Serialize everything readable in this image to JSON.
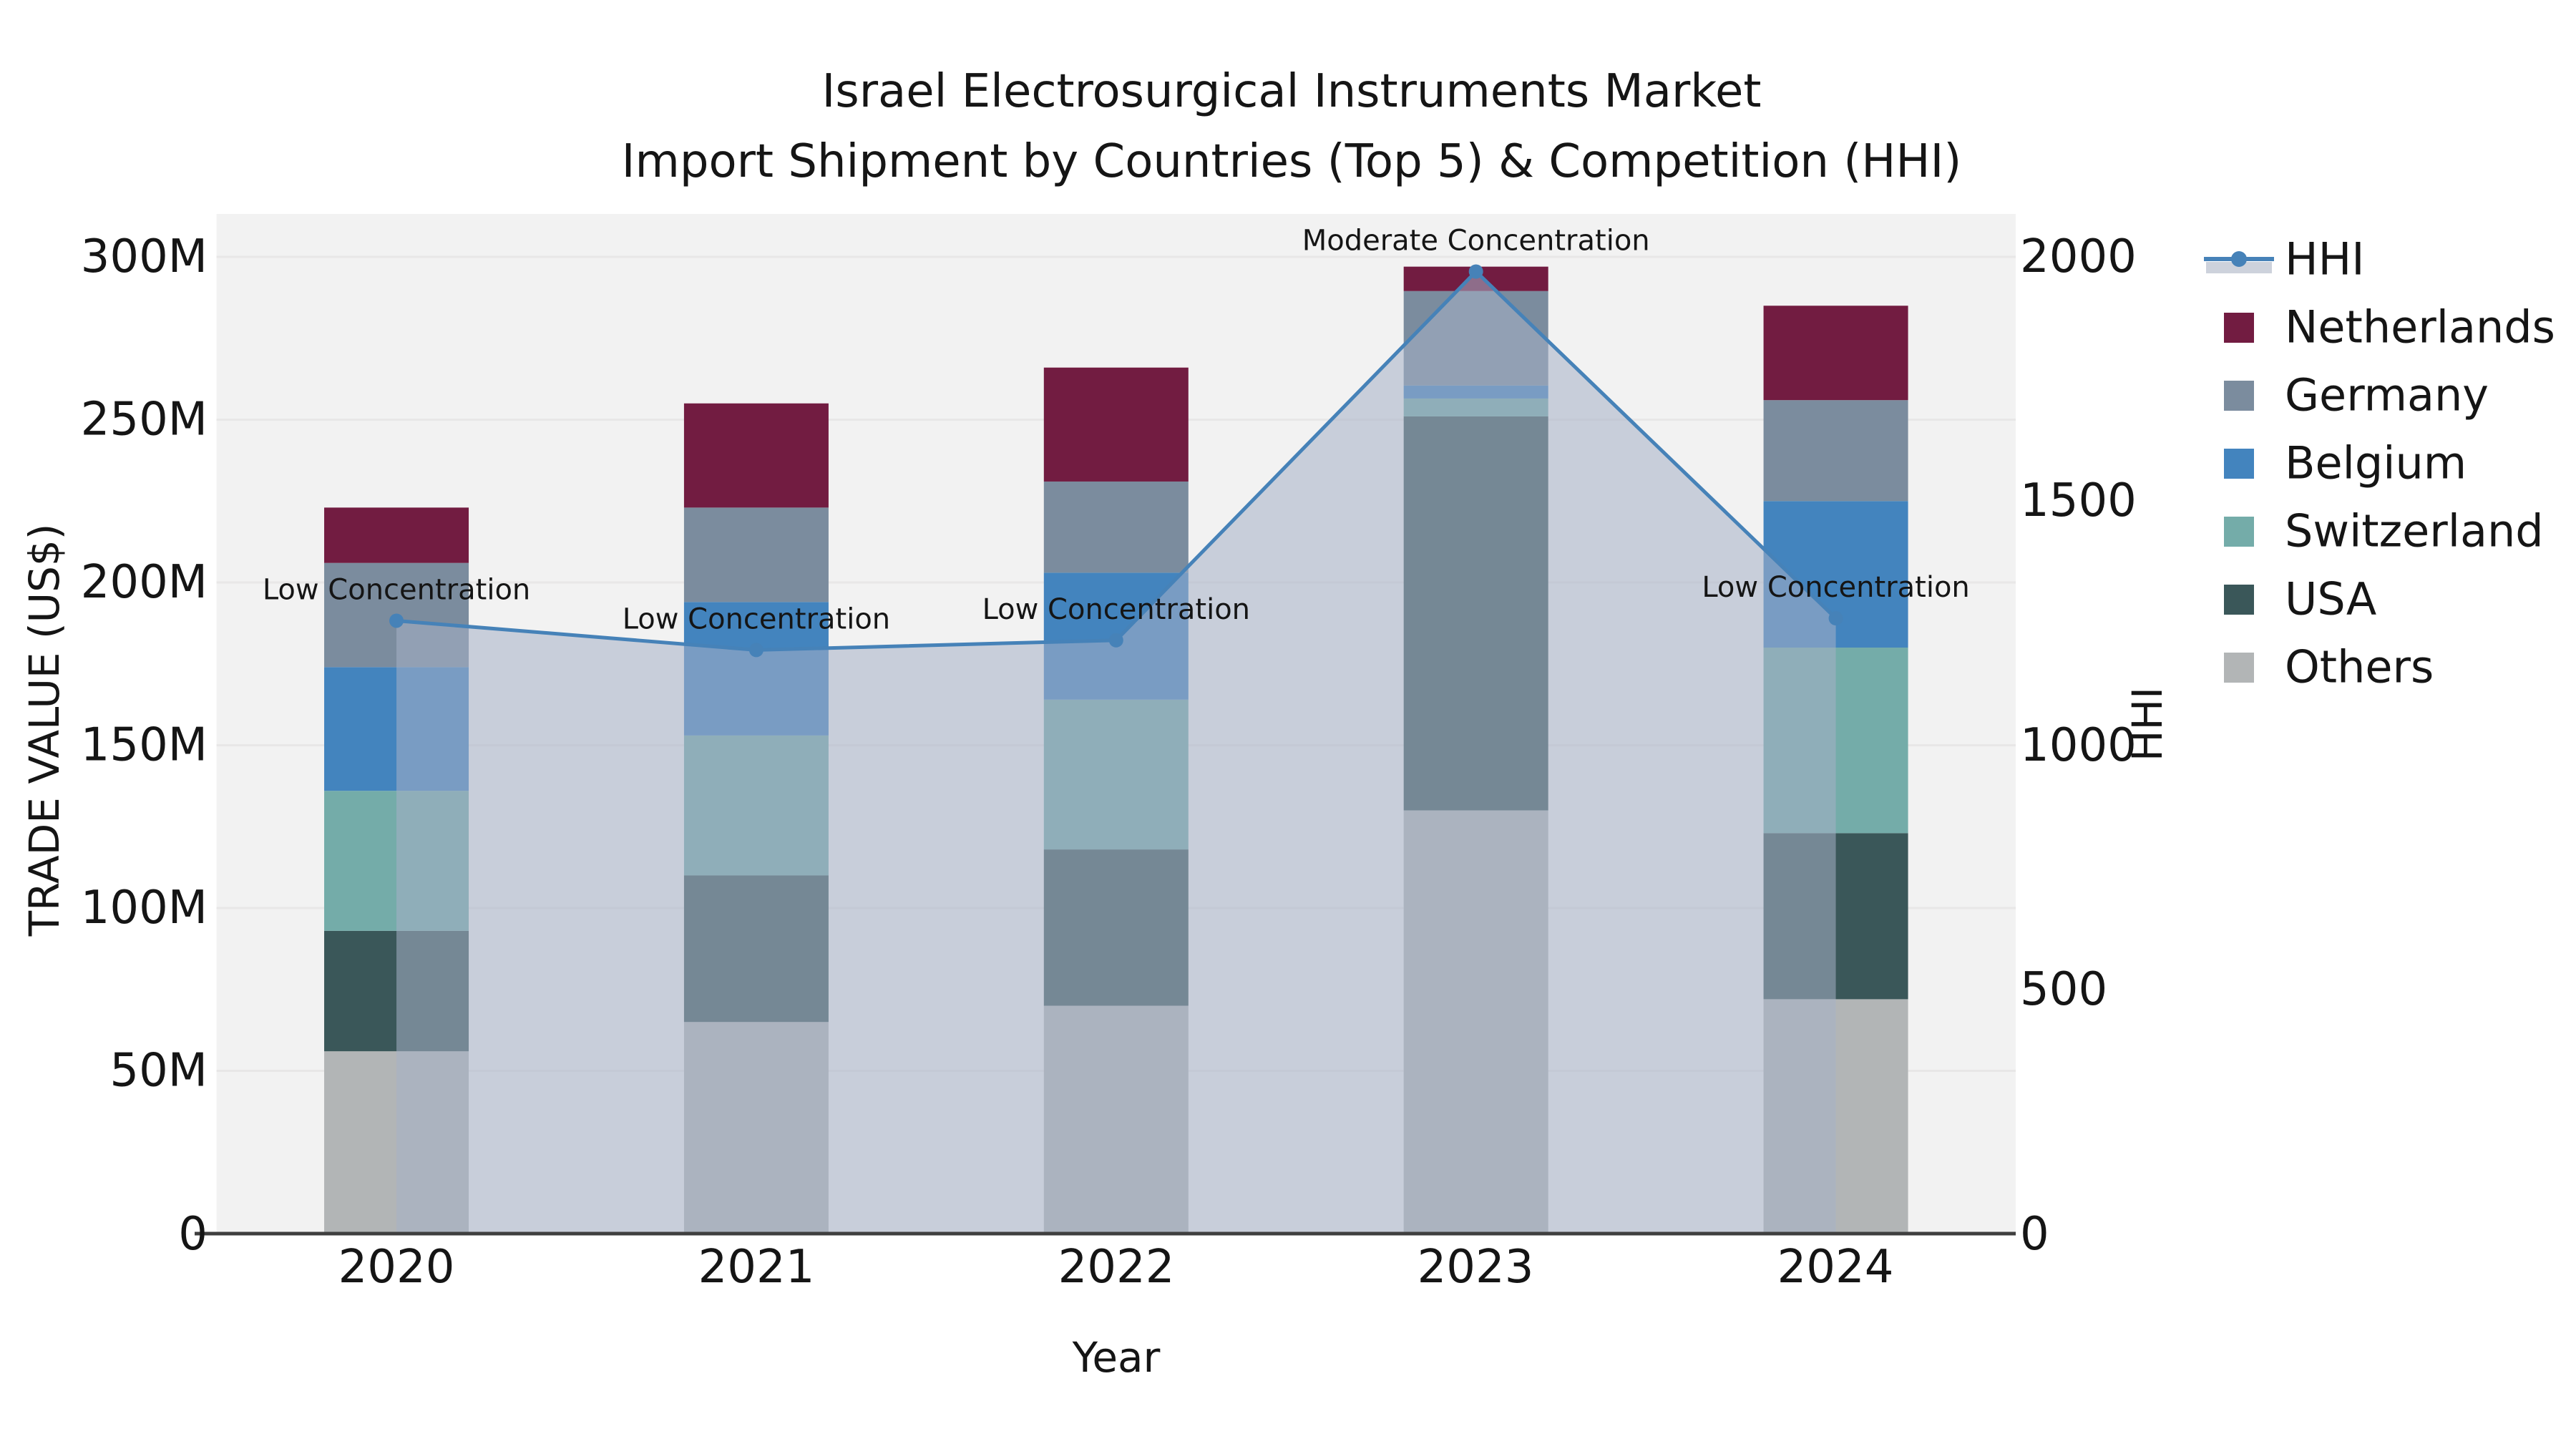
{
  "title": {
    "line1": "Israel Electrosurgical Instruments Market",
    "line2": "Import Shipment by Countries (Top 5) & Competition (HHI)"
  },
  "axes": {
    "y_left": {
      "label": "TRADE VALUE (US$)",
      "tick_labels": [
        "0",
        "50M",
        "100M",
        "150M",
        "200M",
        "250M",
        "300M"
      ],
      "range": [
        0,
        300
      ]
    },
    "y_right": {
      "label": "HHI",
      "tick_labels": [
        "0",
        "500",
        "1000",
        "1500",
        "2000"
      ],
      "range": [
        0,
        2000
      ]
    },
    "x": {
      "label": "Year"
    }
  },
  "legend": {
    "items": [
      {
        "label": "HHI",
        "color": "#4682B8",
        "band_color": "#CDD2DC",
        "type": "line"
      },
      {
        "label": "Netherlands",
        "color": "#721C41",
        "type": "swatch"
      },
      {
        "label": "Germany",
        "color": "#7B8C9E",
        "type": "swatch"
      },
      {
        "label": "Belgium",
        "color": "#4384BE",
        "type": "swatch"
      },
      {
        "label": "Switzerland",
        "color": "#74ACA9",
        "type": "swatch"
      },
      {
        "label": "USA",
        "color": "#3A5759",
        "type": "swatch"
      },
      {
        "label": "Others",
        "color": "#B2B5B6",
        "type": "swatch"
      }
    ]
  },
  "chart_data": {
    "type": "combo-stacked-bar-line",
    "title": "Israel Electrosurgical Instruments Market — Import Shipment by Countries (Top 5) & Competition (HHI)",
    "xlabel": "Year",
    "ylabel_left": "TRADE VALUE (US$)",
    "ylabel_right": "HHI",
    "categories": [
      "2020",
      "2021",
      "2022",
      "2023",
      "2024"
    ],
    "bar_unit": "US$ millions",
    "stack_order_bottom_to_top": [
      "Others",
      "USA",
      "Switzerland",
      "Belgium",
      "Germany",
      "Netherlands"
    ],
    "series": [
      {
        "name": "Others",
        "color": "#B2B5B6",
        "values": [
          56,
          65,
          70,
          130,
          72
        ]
      },
      {
        "name": "USA",
        "color": "#3A5759",
        "values": [
          37,
          45,
          48,
          121,
          51
        ]
      },
      {
        "name": "Switzerland",
        "color": "#74ACA9",
        "values": [
          43,
          43,
          46,
          5.5,
          57
        ]
      },
      {
        "name": "Belgium",
        "color": "#4384BE",
        "values": [
          38,
          41,
          39,
          4,
          45
        ]
      },
      {
        "name": "Germany",
        "color": "#7B8C9E",
        "values": [
          32,
          29,
          28,
          29,
          31
        ]
      },
      {
        "name": "Netherlands",
        "color": "#721C41",
        "values": [
          17,
          32,
          35,
          7.5,
          29
        ]
      }
    ],
    "totals_trade_value_M": [
      223,
      255,
      266,
      297,
      285
    ],
    "line": {
      "name": "HHI",
      "color": "#4682B8",
      "area_color": "rgba(165,177,199,0.55)",
      "values": [
        1255,
        1195,
        1215,
        1970,
        1260
      ],
      "annotations": [
        "Low Concentration",
        "Low Concentration",
        "Low Concentration",
        "Moderate Concentration",
        "Low Concentration"
      ]
    },
    "ylim_left": [
      0,
      300
    ],
    "ylim_right": [
      0,
      2000
    ],
    "grid": "horizontal",
    "legend_position": "right"
  }
}
